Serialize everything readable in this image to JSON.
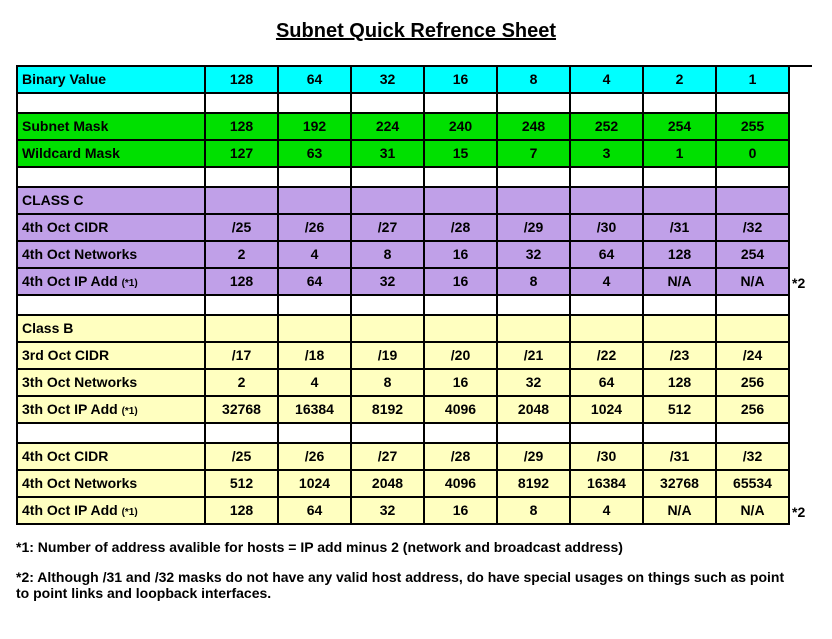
{
  "title": "Subnet Quick Refrence Sheet",
  "colors": {
    "cyan": "#00ffff",
    "green": "#00e000",
    "purple": "#c0a0e8",
    "yellow": "#ffffc0",
    "white": "#ffffff"
  },
  "table": {
    "columns": 8,
    "rows": [
      {
        "bg": "cyan",
        "label": "Binary Value",
        "values": [
          "128",
          "64",
          "32",
          "16",
          "8",
          "4",
          "2",
          "1"
        ],
        "note": ""
      },
      {
        "bg": "white",
        "label": "",
        "values": [
          "",
          "",
          "",
          "",
          "",
          "",
          "",
          ""
        ],
        "note": ""
      },
      {
        "bg": "green",
        "label": "Subnet Mask",
        "values": [
          "128",
          "192",
          "224",
          "240",
          "248",
          "252",
          "254",
          "255"
        ],
        "note": ""
      },
      {
        "bg": "green",
        "label": "Wildcard Mask",
        "values": [
          "127",
          "63",
          "31",
          "15",
          "7",
          "3",
          "1",
          "0"
        ],
        "note": ""
      },
      {
        "bg": "white",
        "label": "",
        "values": [
          "",
          "",
          "",
          "",
          "",
          "",
          "",
          ""
        ],
        "note": ""
      },
      {
        "bg": "purple",
        "label": "CLASS C",
        "values": [
          "",
          "",
          "",
          "",
          "",
          "",
          "",
          ""
        ],
        "note": ""
      },
      {
        "bg": "purple",
        "label": "4th Oct CIDR",
        "values": [
          "/25",
          "/26",
          "/27",
          "/28",
          "/29",
          "/30",
          "/31",
          "/32"
        ],
        "note": ""
      },
      {
        "bg": "purple",
        "label": "4th Oct Networks",
        "values": [
          "2",
          "4",
          "8",
          "16",
          "32",
          "64",
          "128",
          "254"
        ],
        "note": ""
      },
      {
        "bg": "purple",
        "label": "4th Oct IP Add ",
        "suffix": "(*1)",
        "values": [
          "128",
          "64",
          "32",
          "16",
          "8",
          "4",
          "N/A",
          "N/A"
        ],
        "note": "*2"
      },
      {
        "bg": "white",
        "label": "",
        "values": [
          "",
          "",
          "",
          "",
          "",
          "",
          "",
          ""
        ],
        "note": ""
      },
      {
        "bg": "yellow",
        "label": "Class B",
        "values": [
          "",
          "",
          "",
          "",
          "",
          "",
          "",
          ""
        ],
        "note": ""
      },
      {
        "bg": "yellow",
        "label": "3rd Oct CIDR",
        "values": [
          "/17",
          "/18",
          "/19",
          "/20",
          "/21",
          "/22",
          "/23",
          "/24"
        ],
        "note": ""
      },
      {
        "bg": "yellow",
        "label": "3th Oct Networks",
        "values": [
          "2",
          "4",
          "8",
          "16",
          "32",
          "64",
          "128",
          "256"
        ],
        "note": ""
      },
      {
        "bg": "yellow",
        "label": "3th Oct IP Add ",
        "suffix": "(*1)",
        "values": [
          "32768",
          "16384",
          "8192",
          "4096",
          "2048",
          "1024",
          "512",
          "256"
        ],
        "note": ""
      },
      {
        "bg": "white",
        "label": "",
        "values": [
          "",
          "",
          "",
          "",
          "",
          "",
          "",
          ""
        ],
        "note": ""
      },
      {
        "bg": "yellow",
        "label": "4th Oct CIDR",
        "values": [
          "/25",
          "/26",
          "/27",
          "/28",
          "/29",
          "/30",
          "/31",
          "/32"
        ],
        "note": ""
      },
      {
        "bg": "yellow",
        "label": "4th Oct Networks",
        "values": [
          "512",
          "1024",
          "2048",
          "4096",
          "8192",
          "16384",
          "32768",
          "65534"
        ],
        "note": ""
      },
      {
        "bg": "yellow",
        "label": "4th Oct IP Add ",
        "suffix": "(*1)",
        "values": [
          "128",
          "64",
          "32",
          "16",
          "8",
          "4",
          "N/A",
          "N/A"
        ],
        "note": "*2"
      }
    ]
  },
  "footnotes": [
    "*1: Number of address avalible for hosts = IP add minus 2 (network and broadcast address)",
    "*2: Although /31 and /32 masks  do not have any valid host address, do have special usages on things such as point to point links and loopback interfaces."
  ]
}
